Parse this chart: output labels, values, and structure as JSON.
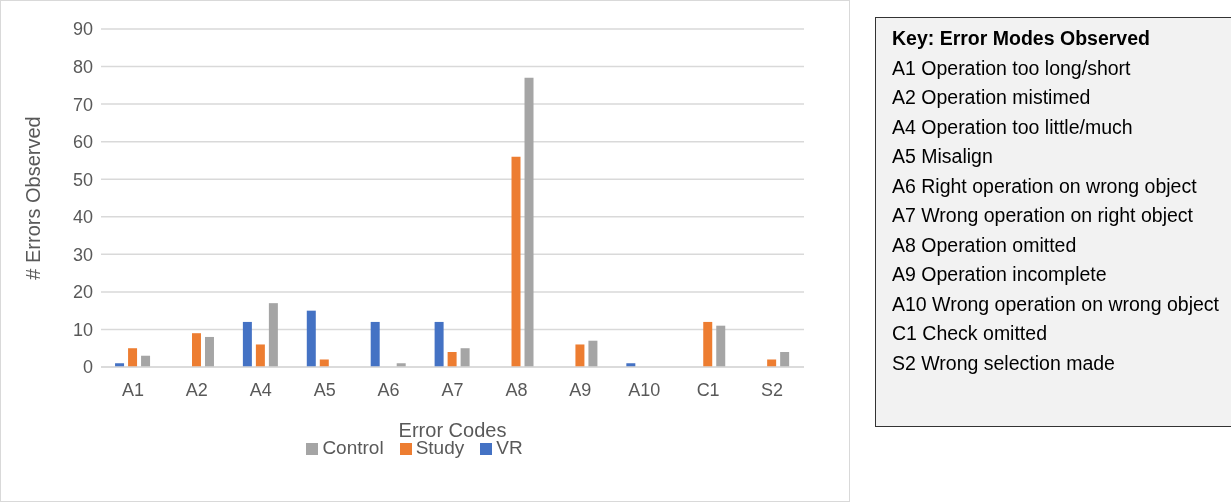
{
  "chart_data": {
    "type": "bar",
    "xlabel": "Error Codes",
    "ylabel": "# Errors Observed",
    "categories": [
      "A1",
      "A2",
      "A4",
      "A5",
      "A6",
      "A7",
      "A8",
      "A9",
      "A10",
      "C1",
      "S2"
    ],
    "series": [
      {
        "name": "VR",
        "color": "#4472c4",
        "values": [
          1,
          0,
          12,
          15,
          12,
          12,
          0,
          0,
          1,
          0,
          0
        ]
      },
      {
        "name": "Study",
        "color": "#ed7d31",
        "values": [
          5,
          9,
          6,
          2,
          0,
          4,
          56,
          6,
          0,
          12,
          2
        ]
      },
      {
        "name": "Control",
        "color": "#a5a5a5",
        "values": [
          3,
          8,
          17,
          0,
          1,
          5,
          77,
          7,
          0,
          11,
          4
        ]
      }
    ],
    "ylim": [
      0,
      90
    ],
    "yticks": [
      0,
      10,
      20,
      30,
      40,
      50,
      60,
      70,
      80,
      90
    ],
    "grid": "y",
    "legend": "bottom",
    "annotations": [
      "Key: Error Modes Observed",
      "A1 Operation too long/short",
      "A2 Operation mistimed",
      "A4 Operation too little/much",
      "A5 Misalign",
      "A6 Right operation on wrong object",
      "A7 Wrong operation on right object",
      "A8 Operation omitted",
      "A9 Operation incomplete",
      "A10 Wrong operation on wrong object",
      "C1 Check omitted",
      "S2 Wrong selection made"
    ]
  }
}
